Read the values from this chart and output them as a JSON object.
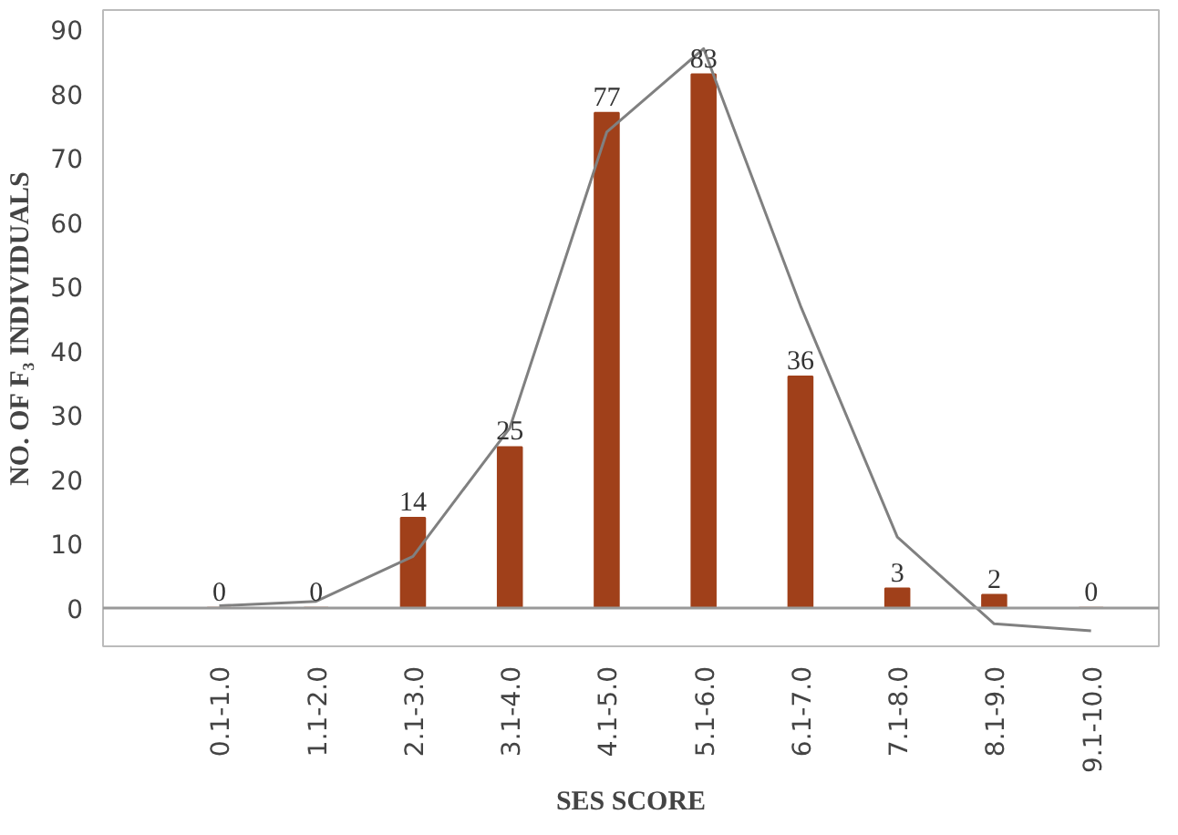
{
  "chart_data": {
    "type": "bar",
    "xlabel": "SES SCORE",
    "ylabel": "NO. OF F₃ INDIVIDUALS",
    "categories": [
      "0.1-1.0",
      "1.1-2.0",
      "2.1-3.0",
      "3.1-4.0",
      "4.1-5.0",
      "5.1-6.0",
      "6.1-7.0",
      "7.1-8.0",
      "8.1-9.0",
      "9.1-10.0"
    ],
    "series": [
      {
        "color": "#a0401a",
        "values": [
          0,
          0,
          14,
          25,
          77,
          83,
          36,
          3,
          2,
          0
        ],
        "value_labels": [
          "0",
          "0",
          "14",
          "25",
          "77",
          "83",
          "36",
          "3",
          "2",
          "0"
        ]
      },
      {
        "type": "line",
        "color": "#808080",
        "values": [
          0.3,
          1,
          8,
          28,
          74,
          87,
          47,
          11,
          -2.5,
          -3.6
        ]
      }
    ],
    "ylim": [
      -6,
      93
    ],
    "yticks": [
      0,
      10,
      20,
      30,
      40,
      50,
      60,
      70,
      80,
      90
    ],
    "ref_lines": [
      {
        "axis": "y",
        "value": 0,
        "color": "#999999"
      }
    ],
    "grid": false
  }
}
